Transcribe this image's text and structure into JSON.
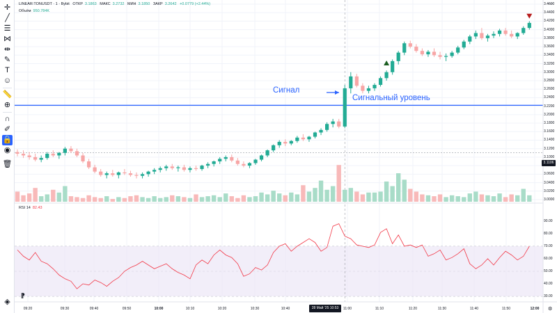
{
  "legend": {
    "symbol": "LINEAR:TONUSDT · 1 · Bybit",
    "o_label": "ОТКР",
    "o_val": "3.1863",
    "h_label": "МАКС",
    "h_val": "3.2732",
    "l_label": "МИН",
    "l_val": "3.1850",
    "c_label": "ЗАКР",
    "c_val": "3.2642",
    "change": "+0.0779 (+2.44%)",
    "volume_label": "Объём",
    "volume_val": "950.784K"
  },
  "rsi": {
    "label": "RSI 14",
    "value": "82.43"
  },
  "annotations": {
    "signal": "Сигнал",
    "signal_level": "Сигнальный уровень"
  },
  "price_axis": [
    "3.4600",
    "3.4400",
    "3.4200",
    "3.4000",
    "3.3800",
    "3.3600",
    "3.3400",
    "3.3200",
    "3.3000",
    "3.2800",
    "3.2600",
    "3.2400",
    "3.2200",
    "3.2000",
    "3.1800",
    "3.1600",
    "3.1400",
    "3.1200",
    "3.1000",
    "3.0800",
    "3.0600",
    "3.0400",
    "3.0200",
    "3.0000"
  ],
  "current_price": "3.1106",
  "rsi_axis": [
    "90.00",
    "80.00",
    "70.00",
    "60.00",
    "50.00",
    "40.00",
    "30.00"
  ],
  "time_axis": [
    "09:20",
    "09:30",
    "09:40",
    "09:50",
    "10:00",
    "10:10",
    "10:20",
    "10:30",
    "10:40",
    "11:00",
    "11:10",
    "11:20",
    "11:30",
    "11:40",
    "11:50",
    "12:00"
  ],
  "crosshair_time": "28 Май '25   10:53",
  "tools": [
    "crosshair-icon",
    "trendline-icon",
    "fib-icon",
    "pattern-icon",
    "measure-icon",
    "brush-icon",
    "text-icon",
    "emoji-icon",
    "ruler-icon",
    "zoom-icon",
    "magnet-icon",
    "lock-draw-icon",
    "lock-icon",
    "eye-icon",
    "trash-icon",
    "layers-icon"
  ],
  "colors": {
    "up": "#22ab94",
    "down": "#f7a6a6",
    "level": "#2962ff",
    "rsi": "#f23645",
    "rsi_band": "#ede7f6"
  },
  "chart_data": {
    "type": "candlestick",
    "price_range": [
      3.0,
      3.46
    ],
    "signal_level": 3.222,
    "candles": [
      [
        3.112,
        3.118,
        3.102,
        3.108
      ],
      [
        3.108,
        3.116,
        3.098,
        3.104
      ],
      [
        3.104,
        3.112,
        3.094,
        3.1
      ],
      [
        3.1,
        3.108,
        3.09,
        3.094
      ],
      [
        3.094,
        3.104,
        3.088,
        3.098
      ],
      [
        3.098,
        3.112,
        3.094,
        3.108
      ],
      [
        3.108,
        3.116,
        3.1,
        3.104
      ],
      [
        3.104,
        3.112,
        3.096,
        3.11
      ],
      [
        3.11,
        3.124,
        3.104,
        3.12
      ],
      [
        3.12,
        3.126,
        3.11,
        3.114
      ],
      [
        3.114,
        3.12,
        3.1,
        3.104
      ],
      [
        3.104,
        3.11,
        3.086,
        3.09
      ],
      [
        3.09,
        3.096,
        3.072,
        3.076
      ],
      [
        3.076,
        3.082,
        3.062,
        3.066
      ],
      [
        3.066,
        3.072,
        3.054,
        3.058
      ],
      [
        3.058,
        3.066,
        3.05,
        3.062
      ],
      [
        3.062,
        3.07,
        3.054,
        3.058
      ],
      [
        3.058,
        3.066,
        3.05,
        3.064
      ],
      [
        3.064,
        3.072,
        3.058,
        3.062
      ],
      [
        3.062,
        3.068,
        3.054,
        3.058
      ],
      [
        3.058,
        3.064,
        3.05,
        3.056
      ],
      [
        3.056,
        3.064,
        3.05,
        3.06
      ],
      [
        3.06,
        3.068,
        3.054,
        3.066
      ],
      [
        3.066,
        3.074,
        3.06,
        3.07
      ],
      [
        3.07,
        3.078,
        3.064,
        3.074
      ],
      [
        3.074,
        3.082,
        3.068,
        3.078
      ],
      [
        3.078,
        3.084,
        3.07,
        3.074
      ],
      [
        3.074,
        3.08,
        3.066,
        3.076
      ],
      [
        3.076,
        3.082,
        3.066,
        3.07
      ],
      [
        3.07,
        3.078,
        3.064,
        3.074
      ],
      [
        3.074,
        3.08,
        3.068,
        3.072
      ],
      [
        3.072,
        3.082,
        3.068,
        3.08
      ],
      [
        3.08,
        3.088,
        3.074,
        3.084
      ],
      [
        3.084,
        3.092,
        3.078,
        3.09
      ],
      [
        3.09,
        3.1,
        3.084,
        3.096
      ],
      [
        3.096,
        3.104,
        3.09,
        3.1
      ],
      [
        3.1,
        3.106,
        3.088,
        3.092
      ],
      [
        3.092,
        3.098,
        3.08,
        3.084
      ],
      [
        3.084,
        3.09,
        3.076,
        3.08
      ],
      [
        3.08,
        3.088,
        3.074,
        3.086
      ],
      [
        3.086,
        3.096,
        3.082,
        3.094
      ],
      [
        3.094,
        3.106,
        3.09,
        3.104
      ],
      [
        3.104,
        3.118,
        3.1,
        3.116
      ],
      [
        3.116,
        3.13,
        3.112,
        3.128
      ],
      [
        3.128,
        3.14,
        3.122,
        3.136
      ],
      [
        3.136,
        3.142,
        3.126,
        3.132
      ],
      [
        3.132,
        3.14,
        3.128,
        3.138
      ],
      [
        3.138,
        3.15,
        3.134,
        3.146
      ],
      [
        3.146,
        3.154,
        3.138,
        3.142
      ],
      [
        3.142,
        3.15,
        3.136,
        3.148
      ],
      [
        3.148,
        3.16,
        3.144,
        3.158
      ],
      [
        3.158,
        3.168,
        3.152,
        3.164
      ],
      [
        3.164,
        3.182,
        3.16,
        3.178
      ],
      [
        3.178,
        3.19,
        3.17,
        3.184
      ],
      [
        3.184,
        3.19,
        3.168,
        3.172
      ],
      [
        3.172,
        3.27,
        3.168,
        3.262
      ],
      [
        3.262,
        3.3,
        3.25,
        3.29
      ],
      [
        3.29,
        3.296,
        3.264,
        3.268
      ],
      [
        3.268,
        3.274,
        3.25,
        3.256
      ],
      [
        3.256,
        3.268,
        3.25,
        3.262
      ],
      [
        3.262,
        3.274,
        3.256,
        3.27
      ],
      [
        3.27,
        3.29,
        3.266,
        3.286
      ],
      [
        3.286,
        3.304,
        3.28,
        3.3
      ],
      [
        3.3,
        3.33,
        3.294,
        3.326
      ],
      [
        3.326,
        3.35,
        3.318,
        3.346
      ],
      [
        3.346,
        3.372,
        3.34,
        3.368
      ],
      [
        3.368,
        3.374,
        3.356,
        3.36
      ],
      [
        3.36,
        3.366,
        3.346,
        3.35
      ],
      [
        3.35,
        3.356,
        3.338,
        3.342
      ],
      [
        3.342,
        3.352,
        3.336,
        3.348
      ],
      [
        3.348,
        3.356,
        3.336,
        3.34
      ],
      [
        3.34,
        3.348,
        3.33,
        3.336
      ],
      [
        3.336,
        3.344,
        3.326,
        3.338
      ],
      [
        3.338,
        3.35,
        3.334,
        3.346
      ],
      [
        3.346,
        3.362,
        3.342,
        3.358
      ],
      [
        3.358,
        3.376,
        3.354,
        3.372
      ],
      [
        3.372,
        3.388,
        3.366,
        3.384
      ],
      [
        3.384,
        3.398,
        3.378,
        3.392
      ],
      [
        3.392,
        3.404,
        3.376,
        3.38
      ],
      [
        3.38,
        3.39,
        3.372,
        3.386
      ],
      [
        3.386,
        3.396,
        3.38,
        3.39
      ],
      [
        3.39,
        3.402,
        3.384,
        3.398
      ],
      [
        3.398,
        3.404,
        3.386,
        3.39
      ],
      [
        3.39,
        3.398,
        3.38,
        3.384
      ],
      [
        3.384,
        3.394,
        3.378,
        3.392
      ],
      [
        3.392,
        3.408,
        3.388,
        3.404
      ],
      [
        3.404,
        3.42,
        3.4,
        3.416
      ]
    ],
    "volume": [
      22,
      14,
      18,
      30,
      12,
      16,
      26,
      20,
      34,
      12,
      10,
      8,
      14,
      10,
      8,
      12,
      6,
      10,
      8,
      12,
      14,
      10,
      8,
      12,
      8,
      10,
      14,
      12,
      10,
      8,
      16,
      10,
      12,
      14,
      10,
      18,
      12,
      8,
      14,
      10,
      12,
      20,
      16,
      24,
      18,
      14,
      20,
      16,
      36,
      22,
      30,
      46,
      26,
      34,
      80,
      26,
      30,
      22,
      16,
      20,
      20,
      22,
      44,
      34,
      62,
      48,
      28,
      22,
      16,
      14,
      12,
      16,
      10,
      14,
      12,
      10,
      18,
      22,
      16,
      14,
      12,
      18,
      10,
      16,
      14,
      28,
      14
    ],
    "rsi": [
      67,
      62,
      59,
      65,
      58,
      56,
      52,
      47,
      44,
      42,
      36,
      40,
      39,
      43,
      41,
      38,
      42,
      45,
      50,
      53,
      55,
      58,
      55,
      52,
      54,
      56,
      52,
      49,
      47,
      44,
      55,
      59,
      56,
      63,
      67,
      63,
      61,
      56,
      46,
      48,
      53,
      51,
      55,
      65,
      70,
      72,
      66,
      70,
      73,
      76,
      73,
      66,
      69,
      86,
      88,
      78,
      76,
      71,
      70,
      69,
      71,
      81,
      84,
      72,
      79,
      70,
      71,
      69,
      71,
      62,
      64,
      67,
      59,
      61,
      64,
      68,
      56,
      52,
      55,
      60,
      55,
      61,
      66,
      63,
      59,
      62,
      70
    ]
  }
}
